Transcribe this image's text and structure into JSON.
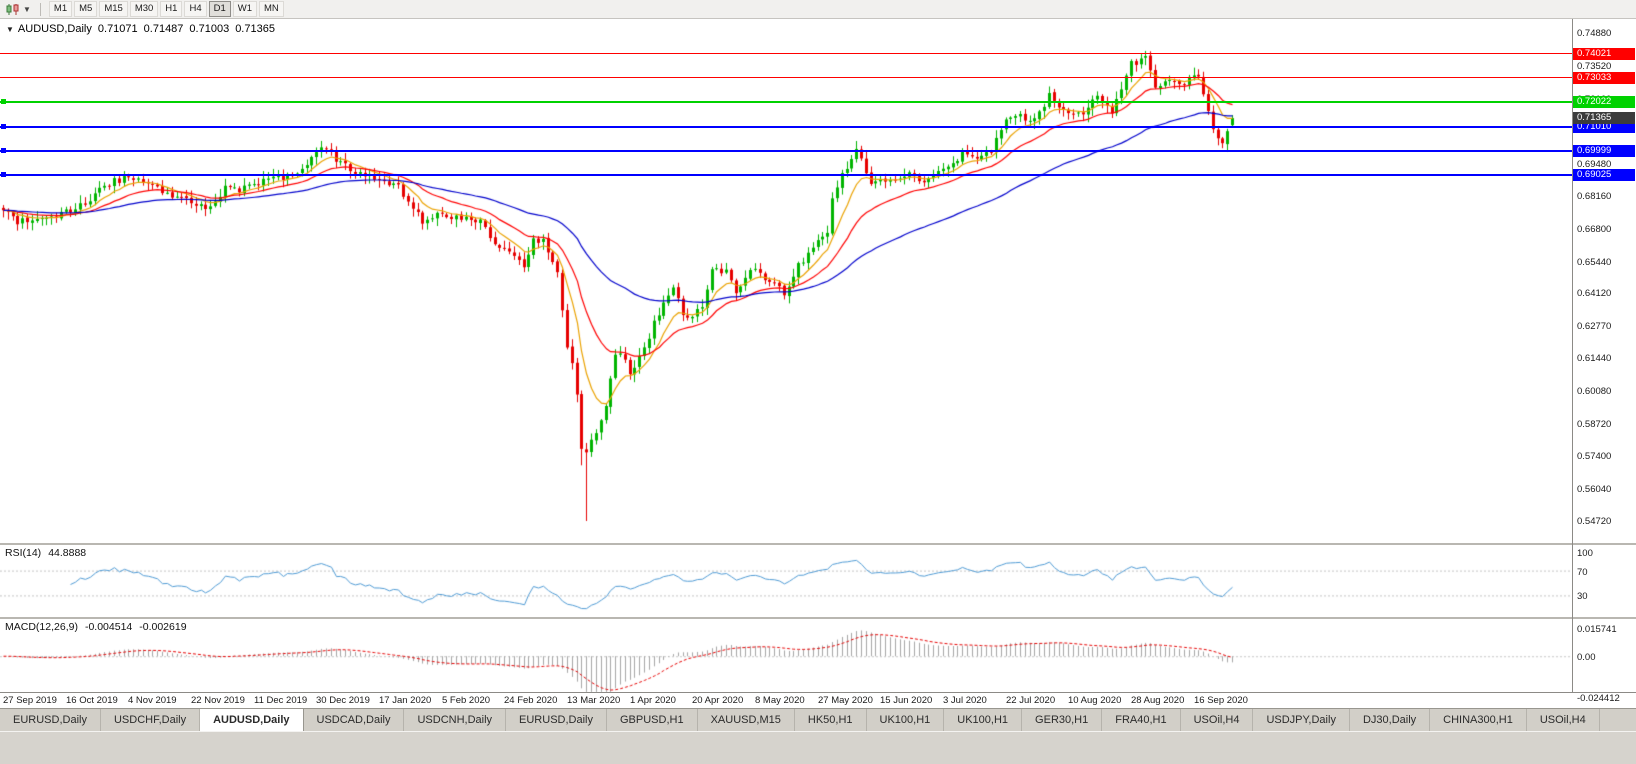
{
  "toolbar": {
    "timeframes": [
      "M1",
      "M5",
      "M15",
      "M30",
      "H1",
      "H4",
      "D1",
      "W1",
      "MN"
    ],
    "active": "D1"
  },
  "header": {
    "symbol": "AUDUSD,Daily",
    "open": "0.71071",
    "high": "0.71487",
    "low": "0.71003",
    "close": "0.71365"
  },
  "rsi_panel": {
    "title": "RSI(14)",
    "value": "44.8888",
    "axis_labels": [
      "100",
      "70",
      "30"
    ],
    "axis_values": [
      100,
      70,
      30
    ],
    "levels": [
      70,
      30
    ],
    "line_color": "#4e9ad4"
  },
  "macd_panel": {
    "title": "MACD(12,26,9)",
    "value_main": "-0.004514",
    "value_signal": "-0.002619",
    "axis_top": "0.015741",
    "axis_zero": "0.00",
    "axis_bottom": "-0.024412",
    "histogram_color": "#a6a6a6",
    "signal_color": "#e60000"
  },
  "tabs": [
    "EURUSD,Daily",
    "USDCHF,Daily",
    "AUDUSD,Daily",
    "USDCAD,Daily",
    "USDCNH,Daily",
    "EURUSD,Daily",
    "GBPUSD,H1",
    "XAUUSD,M15",
    "HK50,H1",
    "UK100,H1",
    "UK100,H1",
    "GER30,H1",
    "FRA40,H1",
    "USOil,H4",
    "USDJPY,Daily",
    "DJ30,Daily",
    "CHINA300,H1",
    "USOil,H4"
  ],
  "active_tab_index": 2,
  "chart_data": {
    "type": "candlestick",
    "symbol": "AUDUSD",
    "timeframe": "Daily",
    "title": "AUDUSD,Daily",
    "num_candles": 256,
    "up_color": "#00b400",
    "down_color": "#e60000",
    "price_axis": {
      "min": 0.5472,
      "max": 0.7488,
      "tick_labels": [
        "0.74880",
        "0.73520",
        "0.72160",
        "0.69480",
        "0.68160",
        "0.66800",
        "0.65440",
        "0.64120",
        "0.62770",
        "0.61440",
        "0.60080",
        "0.58720",
        "0.57400",
        "0.56040",
        "0.54720"
      ]
    },
    "x_axis_dates": [
      "27 Sep 2019",
      "16 Oct 2019",
      "4 Nov 2019",
      "22 Nov 2019",
      "11 Dec 2019",
      "30 Dec 2019",
      "17 Jan 2020",
      "5 Feb 2020",
      "24 Feb 2020",
      "13 Mar 2020",
      "1 Apr 2020",
      "20 Apr 2020",
      "8 May 2020",
      "27 May 2020",
      "15 Jun 2020",
      "3 Jul 2020",
      "22 Jul 2020",
      "10 Aug 2020",
      "28 Aug 2020",
      "16 Sep 2020"
    ],
    "last_candle": {
      "open": 0.71071,
      "high": 0.71487,
      "low": 0.71003,
      "close": 0.71365
    },
    "anchors": [
      [
        0,
        0.6768
      ],
      [
        3,
        0.67
      ],
      [
        6,
        0.6726
      ],
      [
        10,
        0.6731
      ],
      [
        13,
        0.6752
      ],
      [
        17,
        0.6788
      ],
      [
        21,
        0.6862
      ],
      [
        26,
        0.6892
      ],
      [
        29,
        0.6863
      ],
      [
        33,
        0.6838
      ],
      [
        36,
        0.6806
      ],
      [
        39,
        0.6788
      ],
      [
        43,
        0.6768
      ],
      [
        46,
        0.6846
      ],
      [
        49,
        0.6831
      ],
      [
        52,
        0.6866
      ],
      [
        56,
        0.6886
      ],
      [
        60,
        0.6906
      ],
      [
        63,
        0.6952
      ],
      [
        65,
        0.7002
      ],
      [
        66,
        0.7022
      ],
      [
        68,
        0.6986
      ],
      [
        71,
        0.6938
      ],
      [
        74,
        0.6906
      ],
      [
        78,
        0.6877
      ],
      [
        82,
        0.6848
      ],
      [
        85,
        0.6772
      ],
      [
        87,
        0.6696
      ],
      [
        91,
        0.6748
      ],
      [
        95,
        0.6716
      ],
      [
        99,
        0.6721
      ],
      [
        102,
        0.6612
      ],
      [
        104,
        0.6601
      ],
      [
        107,
        0.6561
      ],
      [
        108,
        0.6516
      ],
      [
        110,
        0.6626
      ],
      [
        112,
        0.6641
      ],
      [
        113,
        0.6586
      ],
      [
        115,
        0.6491
      ],
      [
        117,
        0.6191
      ],
      [
        118,
        0.6111
      ],
      [
        119,
        0.5996
      ],
      [
        120,
        0.5781
      ],
      [
        121,
        0.5741
      ],
      [
        122,
        0.5801
      ],
      [
        123,
        0.5826
      ],
      [
        125,
        0.5961
      ],
      [
        127,
        0.6171
      ],
      [
        129,
        0.6136
      ],
      [
        130,
        0.6071
      ],
      [
        133,
        0.6191
      ],
      [
        136,
        0.6336
      ],
      [
        139,
        0.6437
      ],
      [
        141,
        0.6321
      ],
      [
        143,
        0.6316
      ],
      [
        145,
        0.6361
      ],
      [
        147,
        0.6501
      ],
      [
        150,
        0.6511
      ],
      [
        152,
        0.6416
      ],
      [
        156,
        0.6526
      ],
      [
        159,
        0.6456
      ],
      [
        162,
        0.6416
      ],
      [
        165,
        0.6531
      ],
      [
        167,
        0.6566
      ],
      [
        169,
        0.6636
      ],
      [
        171,
        0.6666
      ],
      [
        172,
        0.6801
      ],
      [
        175,
        0.6941
      ],
      [
        177,
        0.7016
      ],
      [
        178,
        0.6961
      ],
      [
        180,
        0.6851
      ],
      [
        182,
        0.6881
      ],
      [
        185,
        0.6876
      ],
      [
        188,
        0.6916
      ],
      [
        191,
        0.6861
      ],
      [
        195,
        0.6936
      ],
      [
        199,
        0.6986
      ],
      [
        202,
        0.6976
      ],
      [
        205,
        0.7001
      ],
      [
        208,
        0.7131
      ],
      [
        211,
        0.7151
      ],
      [
        214,
        0.7121
      ],
      [
        217,
        0.7231
      ],
      [
        221,
        0.7151
      ],
      [
        224,
        0.7166
      ],
      [
        227,
        0.7236
      ],
      [
        230,
        0.7161
      ],
      [
        232,
        0.7261
      ],
      [
        234,
        0.7366
      ],
      [
        236,
        0.7376
      ],
      [
        237,
        0.7391
      ],
      [
        239,
        0.7271
      ],
      [
        241,
        0.7286
      ],
      [
        243,
        0.7281
      ],
      [
        245,
        0.7286
      ],
      [
        247,
        0.7306
      ],
      [
        248,
        0.7311
      ],
      [
        249,
        0.7226
      ],
      [
        250,
        0.7171
      ],
      [
        251,
        0.7081
      ],
      [
        252,
        0.7049
      ],
      [
        253,
        0.7031
      ],
      [
        254,
        0.7069
      ],
      [
        255,
        0.71365
      ]
    ],
    "wick_overrides": [
      {
        "index": 120,
        "low": 0.5702
      },
      {
        "index": 121,
        "low": 0.5472
      },
      {
        "index": 237,
        "high": 0.7414
      },
      {
        "index": 247,
        "high": 0.7345
      }
    ],
    "moving_averages": [
      {
        "period": 8,
        "color": "#eaa200"
      },
      {
        "period": 20,
        "color": "#ff0000"
      },
      {
        "period": 55,
        "color": "#0000cc"
      }
    ],
    "levels": [
      {
        "label": "0.74021",
        "value": 0.74021,
        "color": "#ff0000",
        "thickness": 1,
        "handle": false
      },
      {
        "label": "0.73033",
        "value": 0.73033,
        "color": "#ff0000",
        "thickness": 1,
        "handle": false
      },
      {
        "label": "0.72022",
        "value": 0.72022,
        "color": "#00d200",
        "thickness": 2,
        "handle": true
      },
      {
        "label": "0.71010",
        "value": 0.7101,
        "color": "#0000ff",
        "thickness": 2,
        "handle": true
      },
      {
        "label": "0.69999",
        "value": 0.69999,
        "color": "#0000ff",
        "thickness": 2,
        "handle": true
      },
      {
        "label": "0.69025",
        "value": 0.69025,
        "color": "#0000ff",
        "thickness": 2,
        "handle": true
      }
    ],
    "current_price": {
      "label": "0.71365",
      "value": 0.71365,
      "color": "#3c3c3c"
    }
  }
}
